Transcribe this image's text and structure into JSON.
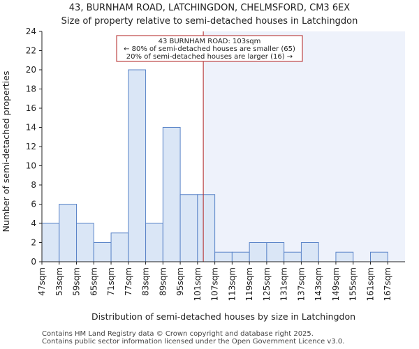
{
  "title": {
    "line1": "43, BURNHAM ROAD, LATCHINGDON, CHELMSFORD, CM3 6EX",
    "line2": "Size of property relative to semi-detached houses in Latchingdon"
  },
  "footer": {
    "line1": "Contains HM Land Registry data © Crown copyright and database right 2025.",
    "line2": "Contains public sector information licensed under the Open Government Licence v3.0."
  },
  "colors": {
    "bar_fill": "#dae6f6",
    "bar_stroke": "#5a84c8",
    "highlight_fill": "#eef2fb",
    "marker": "#b22222",
    "axis": "#222222"
  },
  "chart_data": {
    "type": "bar",
    "categories": [
      "47sqm",
      "53sqm",
      "59sqm",
      "65sqm",
      "71sqm",
      "77sqm",
      "83sqm",
      "89sqm",
      "95sqm",
      "101sqm",
      "107sqm",
      "113sqm",
      "119sqm",
      "125sqm",
      "131sqm",
      "137sqm",
      "143sqm",
      "149sqm",
      "155sqm",
      "161sqm",
      "167sqm"
    ],
    "bin_edges": [
      47,
      53,
      59,
      65,
      71,
      77,
      83,
      89,
      95,
      101,
      107,
      113,
      119,
      125,
      131,
      137,
      143,
      149,
      155,
      161,
      167,
      173
    ],
    "values": [
      4,
      6,
      4,
      2,
      3,
      20,
      4,
      14,
      7,
      7,
      1,
      1,
      2,
      2,
      1,
      2,
      0,
      1,
      0,
      1,
      0
    ],
    "xlabel": "Distribution of semi-detached houses by size in Latchingdon",
    "ylabel": "Number of semi-detached properties",
    "ylim": [
      0,
      24
    ],
    "yticks": [
      0,
      2,
      4,
      6,
      8,
      10,
      12,
      14,
      16,
      18,
      20,
      22,
      24
    ],
    "marker_value": 103,
    "annotation": {
      "line1": "43 BURNHAM ROAD: 103sqm",
      "line2": "← 80% of semi-detached houses are smaller (65)",
      "line3": "20% of semi-detached houses are larger (16) →"
    }
  }
}
